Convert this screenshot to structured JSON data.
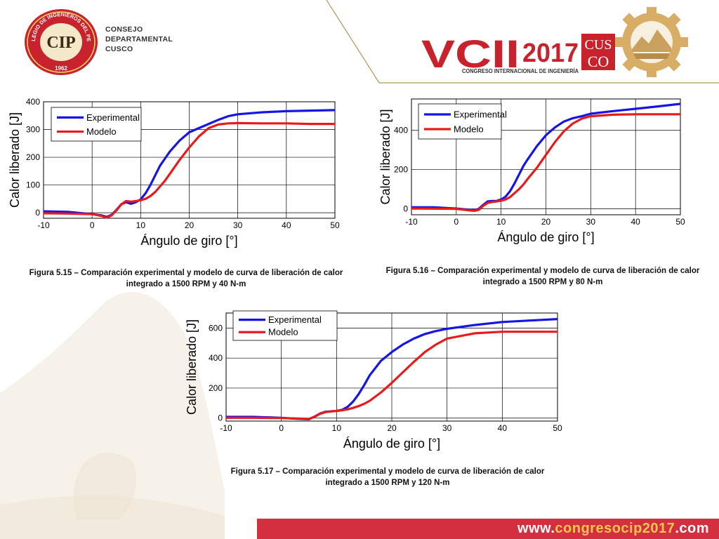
{
  "header": {
    "council_lines": [
      "CONSEJO",
      "DEPARTAMENTAL",
      "CUSCO"
    ],
    "cip_logo": {
      "arc_text": "COLEGIO DE INGENIEROS DEL PERU",
      "monogram": "CIP",
      "year": "1962"
    },
    "congress_logo": {
      "title": "VCII",
      "year": "2017",
      "subtitle": "CONGRESO INTERNACIONAL DE INGENIERÍA",
      "city_top": "CUS",
      "city_bottom": "CO",
      "icon": "gear-mountain-icon"
    }
  },
  "colors": {
    "experimental": "#1515e6",
    "modelo": "#e81a1a",
    "footer_bg": "#d42f3f",
    "gold": "#c69a52"
  },
  "charts": [
    {
      "caption_line1": "Figura 5.15 – Comparación experimental y  modelo de curva de liberación de calor",
      "caption_line2": "integrado a 1500 RPM y 40 N-m"
    },
    {
      "caption_line1": "Figura 5.16 – Comparación experimental y  modelo de curva de liberación de calor",
      "caption_line2": "integrado a 1500 RPM y 80 N-m"
    },
    {
      "caption_line1": "Figura 5.17 – Comparación experimental y  modelo de curva de liberación de calor",
      "caption_line2": "integrado a 1500 RPM y 120 N-m"
    }
  ],
  "chart_data": [
    {
      "type": "line",
      "xlabel": "Ángulo de giro [°]",
      "ylabel": "Calor liberado [J]",
      "xlim": [
        -10,
        50
      ],
      "ylim": [
        -20,
        400
      ],
      "xticks": [
        -10,
        0,
        10,
        20,
        30,
        40,
        50
      ],
      "yticks": [
        0,
        100,
        200,
        300,
        400
      ],
      "grid": true,
      "legend_position": "top-left",
      "series": [
        {
          "name": "Experimental",
          "x": [
            -10,
            -5,
            0,
            2,
            3,
            4,
            5,
            6,
            7,
            8,
            9,
            10,
            11,
            12,
            13,
            14,
            15,
            16,
            18,
            20,
            22,
            24,
            26,
            28,
            30,
            35,
            40,
            45,
            50
          ],
          "y": [
            5,
            3,
            -5,
            -10,
            -15,
            -8,
            10,
            30,
            38,
            32,
            38,
            48,
            70,
            100,
            135,
            170,
            195,
            220,
            260,
            290,
            305,
            320,
            335,
            348,
            355,
            362,
            366,
            368,
            370
          ]
        },
        {
          "name": "Modelo",
          "x": [
            -10,
            -5,
            0,
            2,
            3,
            4,
            5,
            6,
            7,
            8,
            9,
            10,
            11,
            12,
            13,
            14,
            15,
            16,
            18,
            20,
            22,
            24,
            26,
            28,
            30,
            35,
            40,
            45,
            50
          ],
          "y": [
            -2,
            -3,
            -5,
            -12,
            -18,
            -10,
            8,
            30,
            42,
            40,
            42,
            45,
            50,
            60,
            75,
            95,
            115,
            140,
            190,
            235,
            275,
            305,
            318,
            322,
            323,
            322,
            322,
            320,
            320
          ]
        }
      ]
    },
    {
      "type": "line",
      "xlabel": "Ángulo de giro [°]",
      "ylabel": "Calor liberado [J]",
      "xlim": [
        -10,
        50
      ],
      "ylim": [
        -30,
        560
      ],
      "xticks": [
        -10,
        0,
        10,
        20,
        30,
        40,
        50
      ],
      "yticks": [
        0,
        200,
        400
      ],
      "grid": true,
      "legend_position": "top-left",
      "series": [
        {
          "name": "Experimental",
          "x": [
            -10,
            -5,
            0,
            3,
            4,
            5,
            6,
            7,
            8,
            9,
            10,
            11,
            12,
            13,
            14,
            15,
            16,
            18,
            20,
            22,
            24,
            26,
            28,
            30,
            35,
            40,
            45,
            50
          ],
          "y": [
            8,
            8,
            2,
            -5,
            -8,
            0,
            20,
            38,
            40,
            40,
            48,
            62,
            90,
            130,
            175,
            220,
            255,
            320,
            375,
            415,
            445,
            462,
            472,
            485,
            498,
            510,
            522,
            535
          ]
        },
        {
          "name": "Modelo",
          "x": [
            -10,
            -5,
            0,
            3,
            4,
            5,
            6,
            7,
            8,
            9,
            10,
            11,
            12,
            13,
            14,
            15,
            16,
            18,
            20,
            22,
            24,
            26,
            28,
            30,
            35,
            40,
            45,
            50
          ],
          "y": [
            2,
            1,
            0,
            -8,
            -10,
            -5,
            15,
            30,
            35,
            38,
            42,
            48,
            60,
            80,
            100,
            125,
            155,
            210,
            275,
            340,
            395,
            435,
            460,
            472,
            480,
            482,
            482,
            482
          ]
        }
      ]
    },
    {
      "type": "line",
      "xlabel": "Ángulo de giro [°]",
      "ylabel": "Calor liberado [J]",
      "xlim": [
        -10,
        50
      ],
      "ylim": [
        -20,
        700
      ],
      "xticks": [
        -10,
        0,
        10,
        20,
        30,
        40,
        50
      ],
      "yticks": [
        0,
        200,
        400,
        600
      ],
      "grid": true,
      "legend_position": "top-left",
      "series": [
        {
          "name": "Experimental",
          "x": [
            -10,
            -5,
            0,
            3,
            5,
            6,
            7,
            8,
            9,
            10,
            11,
            12,
            13,
            14,
            15,
            16,
            18,
            20,
            22,
            24,
            26,
            28,
            30,
            35,
            40,
            45,
            50
          ],
          "y": [
            8,
            8,
            2,
            -5,
            -8,
            10,
            30,
            42,
            45,
            48,
            55,
            75,
            110,
            160,
            220,
            285,
            380,
            440,
            490,
            530,
            560,
            580,
            595,
            620,
            640,
            650,
            660
          ]
        },
        {
          "name": "Modelo",
          "x": [
            -10,
            -5,
            0,
            3,
            5,
            6,
            7,
            8,
            9,
            10,
            11,
            12,
            13,
            14,
            15,
            16,
            18,
            20,
            22,
            24,
            26,
            28,
            30,
            35,
            40,
            45,
            50
          ],
          "y": [
            2,
            2,
            0,
            -3,
            -6,
            8,
            28,
            40,
            44,
            48,
            52,
            58,
            68,
            80,
            95,
            115,
            170,
            235,
            305,
            375,
            440,
            490,
            530,
            565,
            575,
            575,
            575
          ]
        }
      ]
    }
  ],
  "footer": {
    "url_prefix": "www.",
    "url_highlight": "congresocip2017",
    "url_suffix": ".com"
  }
}
